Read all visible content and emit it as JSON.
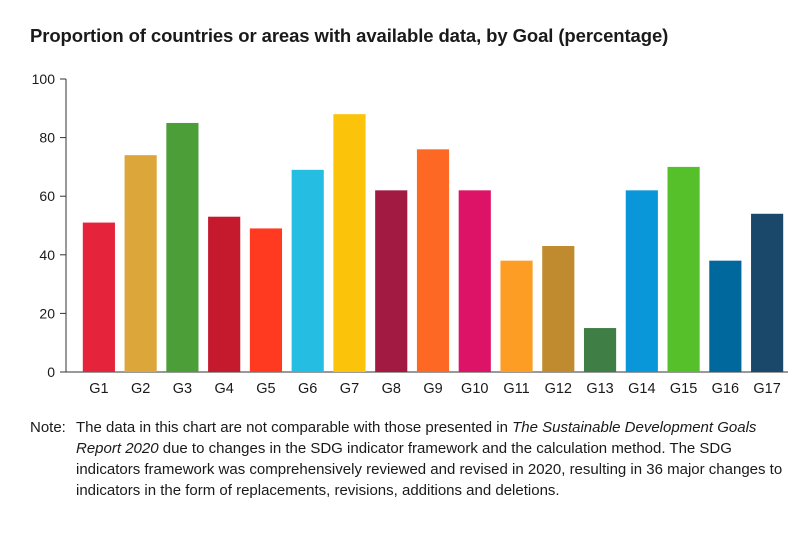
{
  "chart_data": {
    "type": "bar",
    "title": "Proportion of countries or areas with available data, by Goal (percentage)",
    "xlabel": "",
    "ylabel": "",
    "ylim": [
      0,
      100
    ],
    "yticks": [
      0,
      20,
      40,
      60,
      80,
      100
    ],
    "categories": [
      "G1",
      "G2",
      "G3",
      "G4",
      "G5",
      "G6",
      "G7",
      "G8",
      "G9",
      "G10",
      "G11",
      "G12",
      "G13",
      "G14",
      "G15",
      "G16",
      "G17"
    ],
    "values": [
      51,
      74,
      85,
      53,
      49,
      69,
      88,
      62,
      76,
      62,
      38,
      43,
      15,
      62,
      70,
      38,
      54
    ],
    "colors": [
      "#e5243b",
      "#dda63a",
      "#4c9f38",
      "#c5192d",
      "#ff3a21",
      "#26bde2",
      "#fcc30b",
      "#a21942",
      "#fd6925",
      "#dd1367",
      "#fd9d24",
      "#bf8b2e",
      "#3f7e44",
      "#0a97d9",
      "#56c02b",
      "#00689d",
      "#19486a"
    ],
    "legend": "none",
    "grid": false
  },
  "note": {
    "prefix": "Note:",
    "part1": "The data in this chart are not comparable with those presented in ",
    "italic": "The Sustainable Development Goals Report 2020",
    "part2": " due to changes in the SDG indicator framework and the calculation method. The SDG indicators framework was comprehensively reviewed and revised in 2020, resulting in 36 major changes to indicators in the form of replacements, revisions, additions and deletions."
  }
}
